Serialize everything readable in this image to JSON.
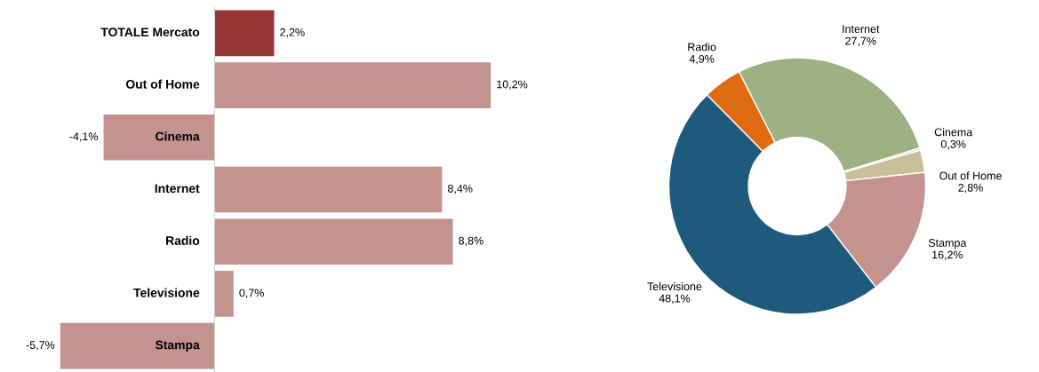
{
  "chart_data": [
    {
      "type": "bar",
      "orientation": "horizontal",
      "categories": [
        "TOTALE Mercato",
        "Out of Home",
        "Cinema",
        "Internet",
        "Radio",
        "Televisione",
        "Stampa"
      ],
      "values": [
        2.2,
        10.2,
        -4.1,
        8.4,
        8.8,
        0.7,
        -5.7
      ],
      "colors": [
        "#963735",
        "#c49390",
        "#c49390",
        "#c49390",
        "#c49390",
        "#c49390",
        "#c49390"
      ],
      "value_labels": [
        "2,2%",
        "10,2%",
        "-4,1%",
        "8,4%",
        "8,8%",
        "0,7%",
        "-5,7%"
      ],
      "tick_labels": "y",
      "legend": false
    },
    {
      "type": "donut",
      "categories": [
        "Internet",
        "Cinema",
        "Out of Home",
        "Stampa",
        "Televisione",
        "Radio"
      ],
      "values": [
        27.7,
        0.3,
        2.8,
        16.2,
        48.1,
        4.9
      ],
      "colors": [
        "#9db184",
        "#d9d9c8",
        "#c8bf9a",
        "#c49390",
        "#1f5a7d",
        "#e06c12"
      ],
      "value_labels": [
        "27,7%",
        "0,3%",
        "2,8%",
        "16,2%",
        "48,1%",
        "4,9%"
      ],
      "legend": false
    }
  ]
}
